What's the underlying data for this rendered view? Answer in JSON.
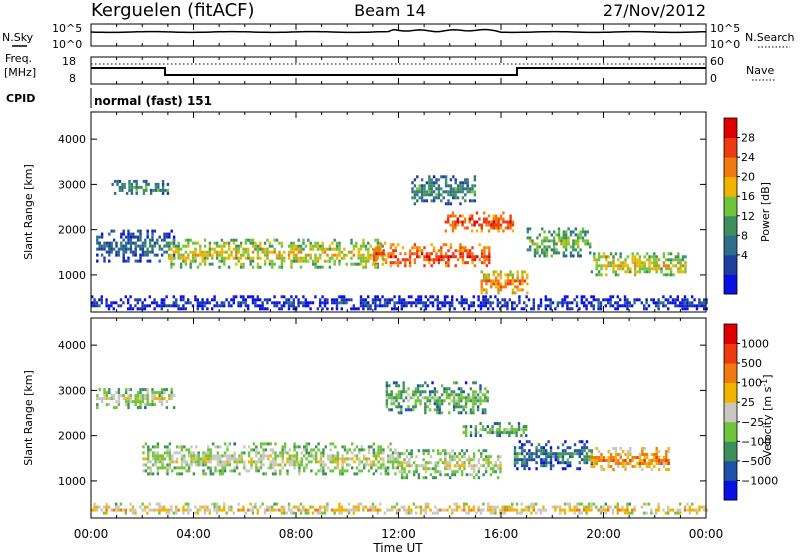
{
  "header": {
    "station": "Kerguelen (fitACF)",
    "beam": "Beam 14",
    "date": "27/Nov/2012"
  },
  "noise_panel": {
    "left_label": "N.Sky",
    "right_label": "N.Search",
    "left_ticks": [
      "10^5",
      "10^0"
    ],
    "right_ticks": [
      "10^5",
      "10^0"
    ]
  },
  "freq_panel": {
    "left_label_1": "Freq.",
    "left_label_2": "[MHz]",
    "right_label": "Nave",
    "left_ticks": [
      "18",
      "8"
    ],
    "right_ticks": [
      "60",
      "0"
    ]
  },
  "cpid": {
    "label": "CPID",
    "value": "normal (fast) 151"
  },
  "colors": {
    "power": [
      "#0a10e0",
      "#1f3fa0",
      "#2e6e8a",
      "#3d8f5c",
      "#6ec43a",
      "#f0b400",
      "#f07a10",
      "#ee3a10",
      "#dd0000"
    ],
    "velocity": [
      "#0a10e0",
      "#1f4fa8",
      "#3d8f5c",
      "#6ec43a",
      "#c8c8c0",
      "#f0b400",
      "#f07a10",
      "#ee3a10",
      "#dd0000"
    ]
  },
  "chart_data": [
    {
      "type": "heatmap",
      "name_in_legend": "Power [dB]",
      "ylabel": "Slant Range [km]",
      "ylim": [
        180,
        4600
      ],
      "y_ticks": [
        "1000",
        "2000",
        "3000",
        "4000"
      ],
      "xlim_hours": [
        0,
        24
      ],
      "x_ticks": [
        "00:00",
        "04:00",
        "08:00",
        "12:00",
        "16:00",
        "20:00",
        "00:00"
      ],
      "colorbar_label": "Power [dB]",
      "colorbar_ticks": [
        "4",
        "8",
        "12",
        "16",
        "20",
        "24",
        "28"
      ],
      "echo_bands": [
        {
          "t0": 0.8,
          "t1": 3.0,
          "r_center": 2950,
          "r_half": 150,
          "level": 3
        },
        {
          "t0": 0.2,
          "t1": 3.2,
          "r_center": 1650,
          "r_half": 350,
          "level": 2
        },
        {
          "t0": 3.0,
          "t1": 11.5,
          "r_center": 1500,
          "r_half": 300,
          "level": 5
        },
        {
          "t0": 11.0,
          "t1": 15.5,
          "r_center": 1450,
          "r_half": 250,
          "level": 7
        },
        {
          "t0": 13.8,
          "t1": 16.5,
          "r_center": 2200,
          "r_half": 200,
          "level": 7
        },
        {
          "t0": 12.5,
          "t1": 15.0,
          "r_center": 2900,
          "r_half": 300,
          "level": 3
        },
        {
          "t0": 15.2,
          "t1": 17.0,
          "r_center": 850,
          "r_half": 250,
          "level": 6
        },
        {
          "t0": 17.0,
          "t1": 19.5,
          "r_center": 1750,
          "r_half": 300,
          "level": 4
        },
        {
          "t0": 19.5,
          "t1": 23.2,
          "r_center": 1250,
          "r_half": 250,
          "level": 5
        },
        {
          "t0": 0.0,
          "t1": 24.0,
          "r_center": 400,
          "r_half": 150,
          "level": 1
        }
      ]
    },
    {
      "type": "heatmap",
      "name_in_legend": "Velocity [m s^-1]",
      "ylabel": "Slant Range [km]",
      "xlabel": "Time UT",
      "ylim": [
        180,
        4600
      ],
      "y_ticks": [
        "1000",
        "2000",
        "3000",
        "4000"
      ],
      "xlim_hours": [
        0,
        24
      ],
      "x_ticks": [
        "00:00",
        "04:00",
        "08:00",
        "12:00",
        "16:00",
        "20:00",
        "00:00"
      ],
      "colorbar_label": "Velocity [m s",
      "colorbar_exponent": "-1",
      "colorbar_label_end": "]",
      "colorbar_ticks": [
        "1000",
        "500",
        "100",
        "25",
        "−25",
        "−100",
        "−500",
        "−1000"
      ],
      "echo_bands": [
        {
          "t0": 0.2,
          "t1": 3.2,
          "r_center": 2850,
          "r_half": 200,
          "level": 4
        },
        {
          "t0": 2.0,
          "t1": 12.0,
          "r_center": 1500,
          "r_half": 350,
          "level": 4
        },
        {
          "t0": 12.0,
          "t1": 16.0,
          "r_center": 1400,
          "r_half": 300,
          "level": 4
        },
        {
          "t0": 11.5,
          "t1": 15.5,
          "r_center": 2850,
          "r_half": 350,
          "level": 3
        },
        {
          "t0": 14.5,
          "t1": 17.0,
          "r_center": 2150,
          "r_half": 150,
          "level": 3
        },
        {
          "t0": 16.5,
          "t1": 19.5,
          "r_center": 1600,
          "r_half": 300,
          "level": 2
        },
        {
          "t0": 19.5,
          "t1": 22.5,
          "r_center": 1500,
          "r_half": 250,
          "level": 6
        },
        {
          "t0": 0.0,
          "t1": 24.0,
          "r_center": 400,
          "r_half": 120,
          "level": 5
        }
      ]
    }
  ]
}
